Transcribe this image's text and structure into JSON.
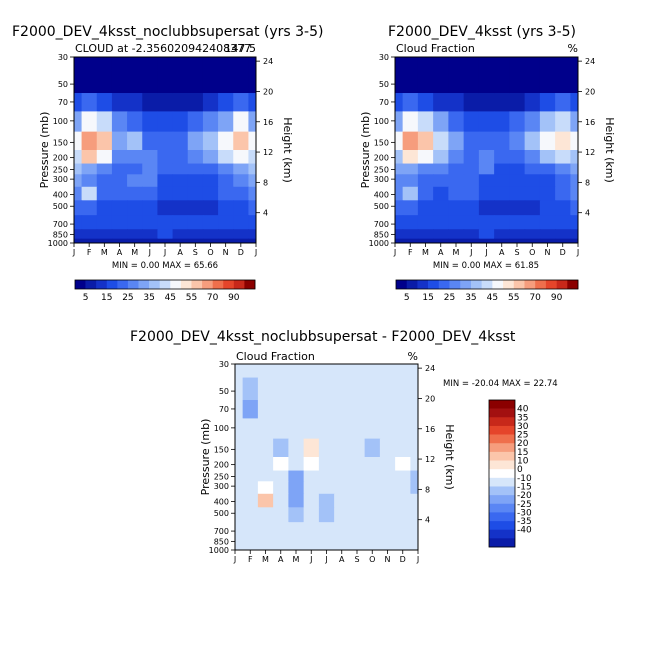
{
  "colors": {
    "scale": [
      "#00008b",
      "#0a1ca8",
      "#1432c8",
      "#1e4de6",
      "#3a68f0",
      "#5a86f4",
      "#7ea4f6",
      "#a3c2f8",
      "#c8dcfa",
      "#f6f8fc",
      "#fde6d6",
      "#fbc5aa",
      "#f69d7d",
      "#ef6f4c",
      "#e5452a",
      "#c8281a",
      "#8b0000"
    ],
    "diff_scale": [
      "#00008b",
      "#0a1ca8",
      "#1432c8",
      "#1e4de6",
      "#3a68f0",
      "#5a86f4",
      "#7ea4f6",
      "#a3c2f8",
      "#d6e6fa",
      "#ffffff",
      "#fde6d6",
      "#fbc5aa",
      "#f69d7d",
      "#ef6f4c",
      "#e5452a",
      "#c8281a",
      "#a31010",
      "#8b0000"
    ]
  },
  "panels": [
    {
      "title": "F2000_DEV_4ksst_noclubbsupersat (yrs 3-5)",
      "left_label": "CLOUD at -2.356020942408377",
      "right_label": "147.5",
      "minmax": "MIN =     0.00 MAX =   65.66"
    },
    {
      "title": "F2000_DEV_4ksst (yrs 3-5)",
      "left_label": "Cloud Fraction",
      "right_label": "%",
      "minmax": "MIN =     0.00 MAX =   61.85"
    },
    {
      "title": "F2000_DEV_4ksst_noclubbsupersat - F2000_DEV_4ksst",
      "left_label": "Cloud Fraction",
      "right_label": "%",
      "minmax": "MIN = -20.04 MAX =  22.74"
    }
  ],
  "axes": {
    "pressure_label": "Pressure (mb)",
    "height_label": "Height (km)",
    "pressure_ticks": [
      "30",
      "50",
      "70",
      "100",
      "150",
      "200",
      "250",
      "300",
      "400",
      "500",
      "700",
      "850",
      "1000"
    ],
    "height_ticks": [
      "24",
      "20",
      "16",
      "12",
      "8",
      "4"
    ],
    "month_ticks": [
      "J",
      "F",
      "M",
      "A",
      "M",
      "J",
      "J",
      "A",
      "S",
      "O",
      "N",
      "D",
      "J"
    ]
  },
  "colorbar": {
    "top_labels": [
      "5",
      "15",
      "25",
      "35",
      "45",
      "55",
      "70",
      "90"
    ],
    "diff_labels": [
      "40",
      "35",
      "30",
      "25",
      "20",
      "15",
      "10",
      "0",
      "-10",
      "-15",
      "-20",
      "-25",
      "-30",
      "-35",
      "-40"
    ]
  },
  "chart_data": [
    {
      "type": "heatmap",
      "title": "F2000_DEV_4ksst_noclubbsupersat (yrs 3-5)",
      "xlabel": "",
      "ylabel": "Pressure (mb)",
      "y2label": "Height (km)",
      "x_categories": [
        "J",
        "F",
        "M",
        "A",
        "M",
        "J",
        "J",
        "A",
        "S",
        "O",
        "N",
        "D",
        "J"
      ],
      "y_levels": [
        30,
        50,
        70,
        100,
        150,
        200,
        250,
        300,
        400,
        500,
        700,
        850,
        1000
      ],
      "values": [
        [
          0,
          0,
          0,
          0,
          0,
          0,
          0,
          0,
          0,
          0,
          0,
          0,
          0
        ],
        [
          0,
          0,
          0,
          0,
          0,
          0,
          0,
          0,
          0,
          0,
          0,
          0,
          0
        ],
        [
          15,
          20,
          15,
          10,
          10,
          5,
          5,
          5,
          5,
          10,
          15,
          20,
          15
        ],
        [
          30,
          45,
          40,
          25,
          20,
          15,
          15,
          15,
          20,
          25,
          30,
          45,
          30
        ],
        [
          45,
          60,
          55,
          30,
          35,
          20,
          20,
          20,
          30,
          35,
          45,
          55,
          45
        ],
        [
          40,
          55,
          45,
          25,
          25,
          25,
          20,
          20,
          25,
          30,
          40,
          45,
          40
        ],
        [
          35,
          30,
          25,
          20,
          20,
          25,
          20,
          20,
          20,
          20,
          25,
          30,
          35
        ],
        [
          30,
          25,
          20,
          20,
          25,
          25,
          15,
          15,
          15,
          15,
          20,
          25,
          30
        ],
        [
          25,
          40,
          20,
          20,
          20,
          20,
          15,
          15,
          15,
          15,
          20,
          20,
          25
        ],
        [
          20,
          20,
          15,
          15,
          15,
          15,
          10,
          10,
          10,
          10,
          15,
          15,
          20
        ],
        [
          15,
          15,
          15,
          15,
          15,
          15,
          15,
          15,
          15,
          15,
          15,
          15,
          15
        ],
        [
          10,
          10,
          10,
          10,
          10,
          10,
          15,
          10,
          10,
          10,
          10,
          10,
          10
        ],
        [
          5,
          5,
          5,
          5,
          5,
          5,
          5,
          5,
          5,
          5,
          5,
          5,
          5
        ]
      ],
      "min": 0.0,
      "max": 65.66,
      "levels": [
        5,
        10,
        15,
        20,
        25,
        30,
        35,
        40,
        45,
        50,
        55,
        60,
        70,
        80,
        90
      ]
    },
    {
      "type": "heatmap",
      "title": "F2000_DEV_4ksst (yrs 3-5)",
      "xlabel": "",
      "ylabel": "Pressure (mb)",
      "y2label": "Height (km)",
      "x_categories": [
        "J",
        "F",
        "M",
        "A",
        "M",
        "J",
        "J",
        "A",
        "S",
        "O",
        "N",
        "D",
        "J"
      ],
      "y_levels": [
        30,
        50,
        70,
        100,
        150,
        200,
        250,
        300,
        400,
        500,
        700,
        850,
        1000
      ],
      "values": [
        [
          0,
          0,
          0,
          0,
          0,
          0,
          0,
          0,
          0,
          0,
          0,
          0,
          0
        ],
        [
          0,
          0,
          0,
          0,
          0,
          0,
          0,
          0,
          0,
          0,
          0,
          0,
          0
        ],
        [
          15,
          20,
          15,
          10,
          10,
          5,
          5,
          5,
          5,
          10,
          15,
          20,
          15
        ],
        [
          30,
          45,
          40,
          30,
          20,
          15,
          15,
          15,
          20,
          25,
          35,
          40,
          30
        ],
        [
          45,
          60,
          55,
          40,
          30,
          20,
          20,
          20,
          25,
          35,
          45,
          50,
          45
        ],
        [
          35,
          50,
          45,
          35,
          25,
          20,
          25,
          20,
          20,
          25,
          35,
          40,
          35
        ],
        [
          30,
          30,
          25,
          25,
          20,
          20,
          25,
          15,
          15,
          20,
          20,
          25,
          30
        ],
        [
          25,
          25,
          20,
          20,
          20,
          20,
          15,
          15,
          15,
          15,
          15,
          20,
          25
        ],
        [
          25,
          35,
          20,
          15,
          20,
          20,
          15,
          15,
          15,
          15,
          15,
          20,
          25
        ],
        [
          20,
          20,
          15,
          15,
          15,
          15,
          10,
          10,
          10,
          10,
          15,
          15,
          20
        ],
        [
          15,
          15,
          15,
          15,
          15,
          15,
          15,
          15,
          15,
          15,
          15,
          15,
          15
        ],
        [
          10,
          10,
          10,
          10,
          10,
          10,
          15,
          10,
          10,
          10,
          10,
          10,
          10
        ],
        [
          5,
          5,
          5,
          5,
          5,
          5,
          5,
          5,
          5,
          5,
          5,
          5,
          5
        ]
      ],
      "min": 0.0,
      "max": 61.85,
      "levels": [
        5,
        10,
        15,
        20,
        25,
        30,
        35,
        40,
        45,
        50,
        55,
        60,
        70,
        80,
        90
      ]
    },
    {
      "type": "heatmap",
      "title": "F2000_DEV_4ksst_noclubbsupersat - F2000_DEV_4ksst",
      "xlabel": "",
      "ylabel": "Pressure (mb)",
      "y2label": "Height (km)",
      "x_categories": [
        "J",
        "F",
        "M",
        "A",
        "M",
        "J",
        "J",
        "A",
        "S",
        "O",
        "N",
        "D",
        "J"
      ],
      "y_levels": [
        30,
        50,
        70,
        100,
        150,
        200,
        250,
        300,
        400,
        500,
        700,
        850,
        1000
      ],
      "values": [
        [
          2,
          2,
          2,
          2,
          2,
          2,
          2,
          2,
          2,
          2,
          2,
          2,
          2
        ],
        [
          2,
          -2,
          2,
          2,
          2,
          2,
          2,
          2,
          2,
          2,
          2,
          2,
          2
        ],
        [
          2,
          -12,
          2,
          2,
          2,
          2,
          2,
          2,
          2,
          2,
          2,
          2,
          2
        ],
        [
          2,
          2,
          2,
          2,
          2,
          2,
          2,
          2,
          2,
          2,
          2,
          2,
          2
        ],
        [
          2,
          2,
          2,
          -5,
          2,
          15,
          2,
          2,
          2,
          -5,
          2,
          2,
          2
        ],
        [
          2,
          2,
          2,
          10,
          2,
          12,
          2,
          2,
          2,
          2,
          2,
          10,
          2
        ],
        [
          2,
          2,
          2,
          8,
          -12,
          2,
          2,
          2,
          2,
          5,
          2,
          2,
          -5
        ],
        [
          2,
          2,
          10,
          2,
          -15,
          2,
          2,
          2,
          2,
          5,
          2,
          2,
          -5
        ],
        [
          2,
          2,
          20,
          2,
          -15,
          2,
          -5,
          2,
          2,
          8,
          2,
          2,
          2
        ],
        [
          2,
          2,
          5,
          2,
          -5,
          2,
          -5,
          2,
          2,
          2,
          2,
          2,
          2
        ],
        [
          2,
          2,
          2,
          2,
          2,
          2,
          2,
          2,
          2,
          2,
          2,
          2,
          2
        ],
        [
          2,
          2,
          2,
          2,
          2,
          2,
          2,
          2,
          2,
          2,
          2,
          2,
          2
        ],
        [
          2,
          2,
          2,
          2,
          2,
          2,
          2,
          2,
          2,
          2,
          2,
          2,
          2
        ]
      ],
      "min": -20.04,
      "max": 22.74,
      "levels": [
        -40,
        -35,
        -30,
        -25,
        -20,
        -15,
        -10,
        0,
        10,
        15,
        20,
        25,
        30,
        35,
        40
      ]
    }
  ]
}
